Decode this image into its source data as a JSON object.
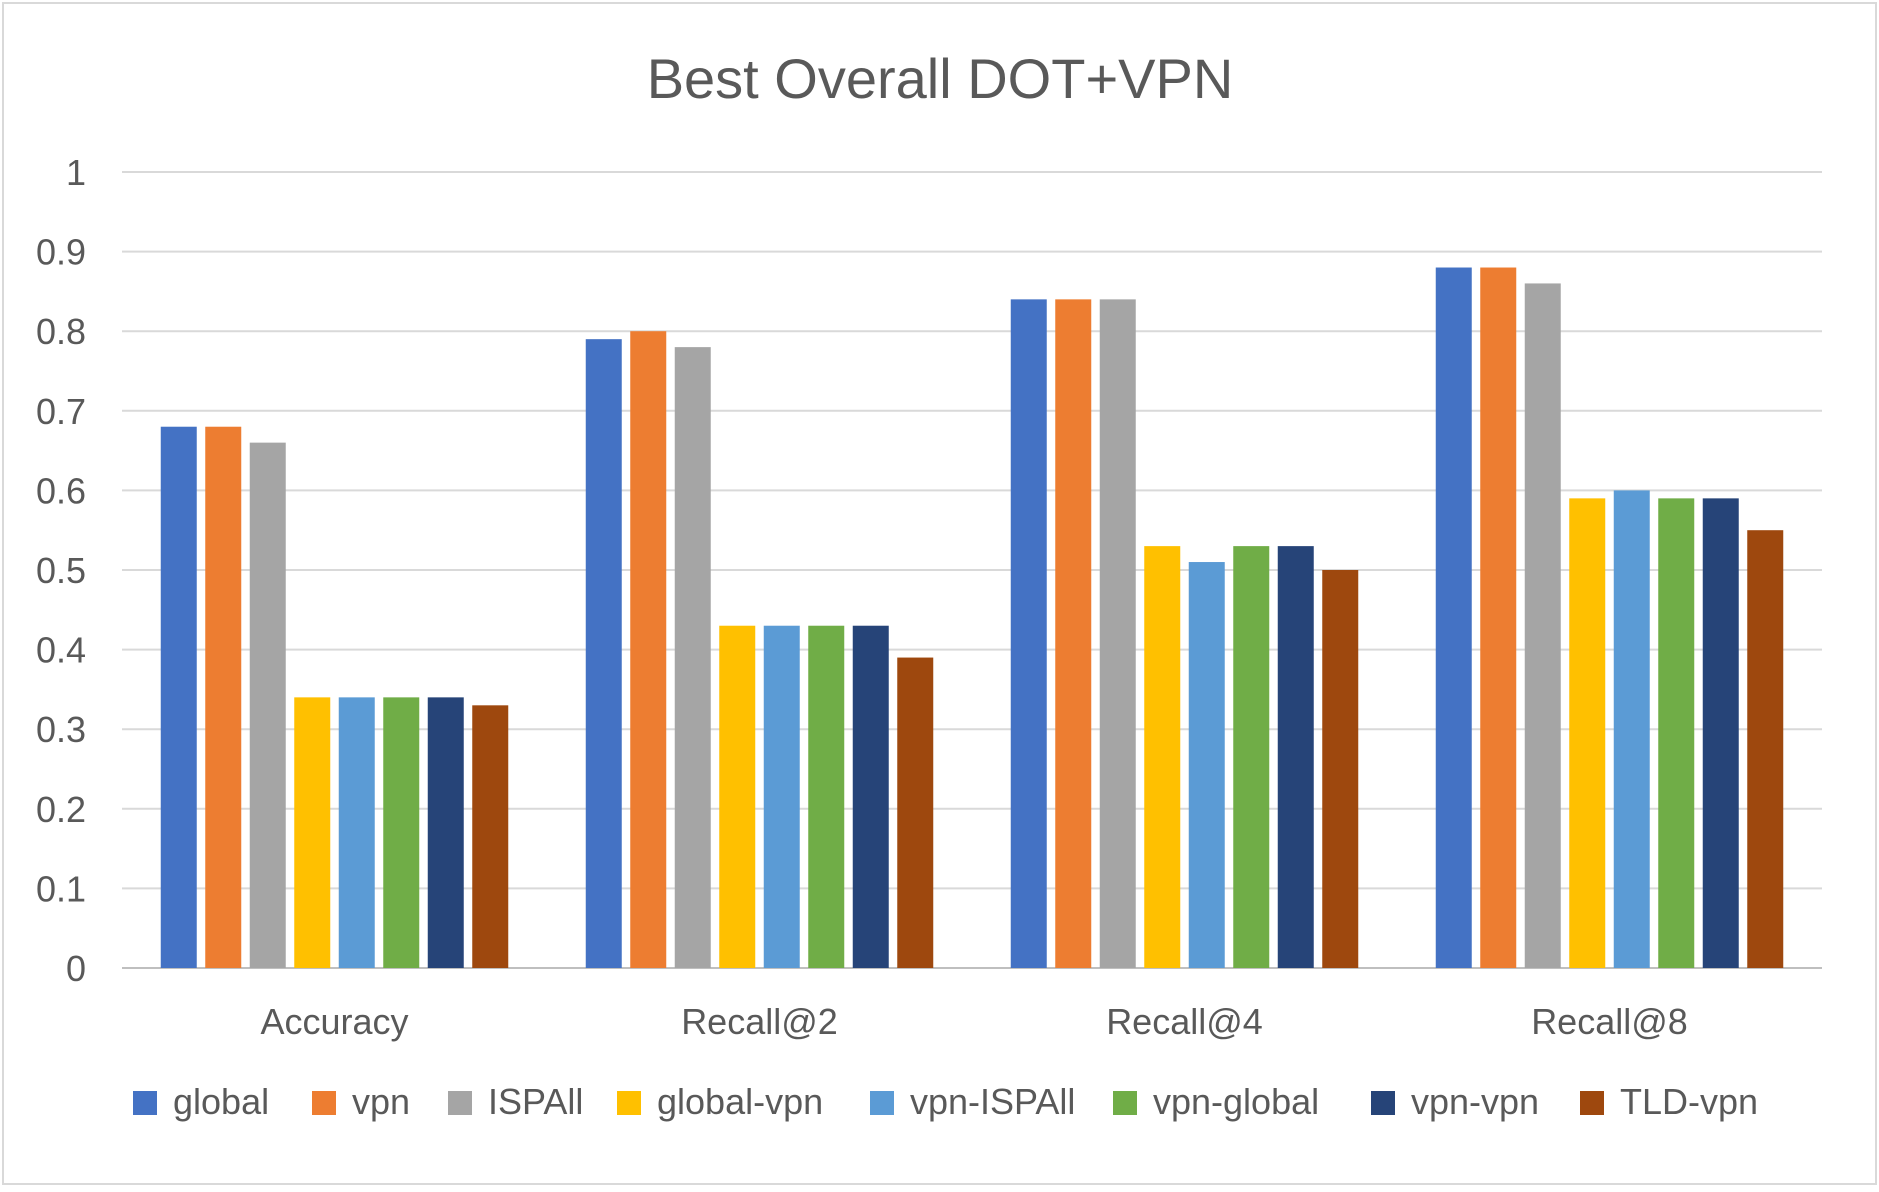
{
  "chart_data": {
    "type": "bar",
    "title": "Best Overall DOT+VPN",
    "xlabel": "",
    "ylabel": "",
    "ylim": [
      0,
      1
    ],
    "yticks": [
      "0",
      "0.1",
      "0.2",
      "0.3",
      "0.4",
      "0.5",
      "0.6",
      "0.7",
      "0.8",
      "0.9",
      "1"
    ],
    "grid": true,
    "legend_position": "bottom",
    "categories": [
      "Accuracy",
      "Recall@2",
      "Recall@4",
      "Recall@8"
    ],
    "series": [
      {
        "name": "global",
        "color": "#4472C4",
        "values": [
          0.68,
          0.79,
          0.84,
          0.88
        ]
      },
      {
        "name": "vpn",
        "color": "#ED7D31",
        "values": [
          0.68,
          0.8,
          0.84,
          0.88
        ]
      },
      {
        "name": "ISPAll",
        "color": "#A5A5A5",
        "values": [
          0.66,
          0.78,
          0.84,
          0.86
        ]
      },
      {
        "name": "global-vpn",
        "color": "#FFC000",
        "values": [
          0.34,
          0.43,
          0.53,
          0.59
        ]
      },
      {
        "name": "vpn-ISPAll",
        "color": "#5B9BD5",
        "values": [
          0.34,
          0.43,
          0.51,
          0.6
        ]
      },
      {
        "name": "vpn-global",
        "color": "#70AD47",
        "values": [
          0.34,
          0.43,
          0.53,
          0.59
        ]
      },
      {
        "name": "vpn-vpn",
        "color": "#264478",
        "values": [
          0.34,
          0.43,
          0.53,
          0.59
        ]
      },
      {
        "name": "TLD-vpn",
        "color": "#9E480E",
        "values": [
          0.33,
          0.39,
          0.5,
          0.55
        ]
      }
    ]
  }
}
